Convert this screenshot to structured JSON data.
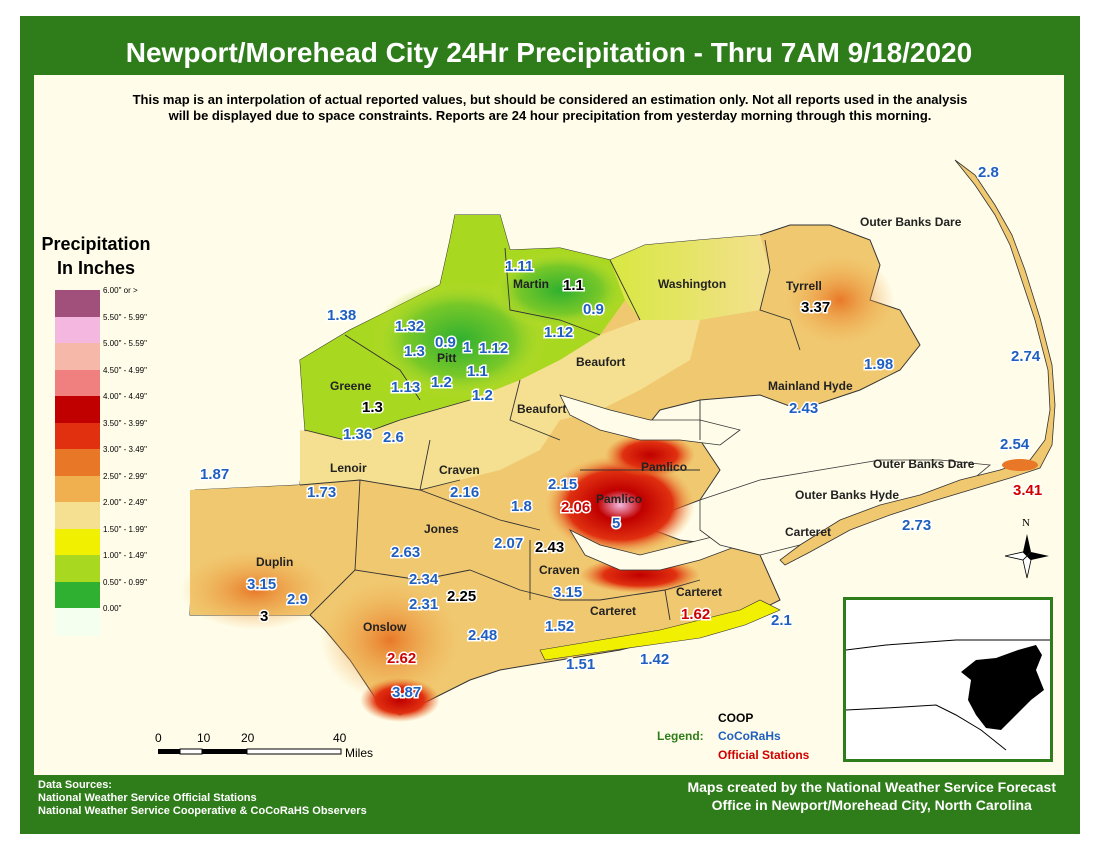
{
  "title": "Newport/Morehead City 24Hr Precipitation - Thru 7AM 9/18/2020",
  "disclaimer": {
    "line1": "This map is an interpolation of actual reported values, but should be considered an estimation only. Not all reports used in the analysis",
    "line2": "will be displayed due to space constraints. Reports are 24 hour precipitation from yesterday morning through this morning."
  },
  "legend": {
    "title1": "Precipitation",
    "title2": "In Inches",
    "bins": [
      {
        "label": "6.00\" or >",
        "color": "#a0507a"
      },
      {
        "label": "5.50\" - 5.99\"",
        "color": "#f4b8e0"
      },
      {
        "label": "5.00\" - 5.59\"",
        "color": "#f6b8a8"
      },
      {
        "label": "4.50\" - 4.99\"",
        "color": "#f08080"
      },
      {
        "label": "4.00\" - 4.49\"",
        "color": "#c00000"
      },
      {
        "label": "3.50\" - 3.99\"",
        "color": "#e03010"
      },
      {
        "label": "3.00\" - 3.49\"",
        "color": "#e87828"
      },
      {
        "label": "2.50\" - 2.99\"",
        "color": "#f0b050"
      },
      {
        "label": "2.00\" - 2.49\"",
        "color": "#f4e090"
      },
      {
        "label": "1.50\" - 1.99\"",
        "color": "#f0f000"
      },
      {
        "label": "1.00\" - 1.49\"",
        "color": "#a8d820"
      },
      {
        "label": "0.50\" - 0.99\"",
        "color": "#30b030"
      },
      {
        "label": "0.00\"",
        "color": "#f4fff0"
      }
    ]
  },
  "station_legend": {
    "coop": "COOP",
    "legend_word": "Legend:",
    "cocorahs": "CoCoRaHs",
    "official": "Official Stations"
  },
  "scale_bar": {
    "labels": [
      "0",
      "10",
      "20",
      "40"
    ],
    "unit": "Miles"
  },
  "footer": {
    "sources_title": "Data Sources:",
    "source1": "National Weather Service Official Stations",
    "source2": "National Weather Service Cooperative & CoCoRaHS Observers",
    "credit1": "Maps created by the National Weather Service Forecast",
    "credit2": "Office in Newport/Morehead City, North Carolina"
  },
  "north_label": "N",
  "county_names": {
    "martin": "Martin",
    "washington": "Washington",
    "tyrrell": "Tyrrell",
    "obx_dare_n": "Outer Banks Dare",
    "pitt": "Pitt",
    "beaufort1": "Beaufort",
    "beaufort2": "Beaufort",
    "greene": "Greene",
    "mainland_hyde": "Mainland Hyde",
    "lenoir": "Lenoir",
    "craven1": "Craven",
    "pamlico1": "Pamlico",
    "obx_dare_s": "Outer Banks Dare",
    "obx_hyde": "Outer Banks Hyde",
    "pamlico2": "Pamlico",
    "duplin": "Duplin",
    "jones": "Jones",
    "carteret1": "Carteret",
    "craven2": "Craven",
    "carteret2": "Carteret",
    "carteret3": "Carteret",
    "onslow": "Onslow"
  },
  "reports": {
    "r1": {
      "value": "2.8",
      "type": "cocorahs"
    },
    "r2": {
      "value": "1.11",
      "type": "cocorahs"
    },
    "r3": {
      "value": "1.1",
      "type": "coop"
    },
    "r4": {
      "value": "0.9",
      "type": "cocorahs"
    },
    "r5": {
      "value": "1.38",
      "type": "cocorahs"
    },
    "r6": {
      "value": "1.32",
      "type": "cocorahs"
    },
    "r7": {
      "value": "1.12",
      "type": "cocorahs"
    },
    "r8": {
      "value": "3.37",
      "type": "coop"
    },
    "r9": {
      "value": "0.9",
      "type": "cocorahs"
    },
    "r10": {
      "value": "1",
      "type": "cocorahs"
    },
    "r11": {
      "value": "1.12",
      "type": "cocorahs"
    },
    "r12": {
      "value": "1.3",
      "type": "cocorahs"
    },
    "r13": {
      "value": "1.1",
      "type": "cocorahs"
    },
    "r14": {
      "value": "1.98",
      "type": "cocorahs"
    },
    "r15": {
      "value": "2.74",
      "type": "cocorahs"
    },
    "r16": {
      "value": "1.13",
      "type": "cocorahs"
    },
    "r17": {
      "value": "1.2",
      "type": "cocorahs"
    },
    "r18": {
      "value": "1.2",
      "type": "cocorahs"
    },
    "r19": {
      "value": "2.43",
      "type": "cocorahs"
    },
    "r20": {
      "value": "1.3",
      "type": "coop"
    },
    "r21": {
      "value": "1.36",
      "type": "cocorahs"
    },
    "r22": {
      "value": "2.6",
      "type": "cocorahs"
    },
    "r23": {
      "value": "2.54",
      "type": "cocorahs"
    },
    "r24": {
      "value": "1.87",
      "type": "cocorahs"
    },
    "r25": {
      "value": "1.73",
      "type": "cocorahs"
    },
    "r26": {
      "value": "2.16",
      "type": "cocorahs"
    },
    "r27": {
      "value": "2.15",
      "type": "cocorahs"
    },
    "r28": {
      "value": "3.41",
      "type": "official"
    },
    "r29": {
      "value": "1.8",
      "type": "cocorahs"
    },
    "r30": {
      "value": "2.06",
      "type": "official"
    },
    "r31": {
      "value": "5",
      "type": "cocorahs"
    },
    "r32": {
      "value": "2.73",
      "type": "cocorahs"
    },
    "r33": {
      "value": "2.07",
      "type": "cocorahs"
    },
    "r34": {
      "value": "2.43",
      "type": "coop"
    },
    "r35": {
      "value": "2.63",
      "type": "cocorahs"
    },
    "r36": {
      "value": "3.15",
      "type": "cocorahs"
    },
    "r37": {
      "value": "2.9",
      "type": "cocorahs"
    },
    "r38": {
      "value": "2.34",
      "type": "cocorahs"
    },
    "r39": {
      "value": "3.15",
      "type": "cocorahs"
    },
    "r40": {
      "value": "2.25",
      "type": "coop"
    },
    "r41": {
      "value": "2.31",
      "type": "cocorahs"
    },
    "r42": {
      "value": "3",
      "type": "coop"
    },
    "r43": {
      "value": "1.62",
      "type": "official"
    },
    "r44": {
      "value": "2.1",
      "type": "cocorahs"
    },
    "r45": {
      "value": "2.48",
      "type": "cocorahs"
    },
    "r46": {
      "value": "1.52",
      "type": "cocorahs"
    },
    "r47": {
      "value": "2.62",
      "type": "official"
    },
    "r48": {
      "value": "1.51",
      "type": "cocorahs"
    },
    "r49": {
      "value": "1.42",
      "type": "cocorahs"
    },
    "r50": {
      "value": "3.87",
      "type": "cocorahs"
    }
  },
  "colors": {
    "frame": "#2f7d1a",
    "cocorahs": "#1f5fbf",
    "coop": "#000000",
    "official": "#d00000"
  }
}
